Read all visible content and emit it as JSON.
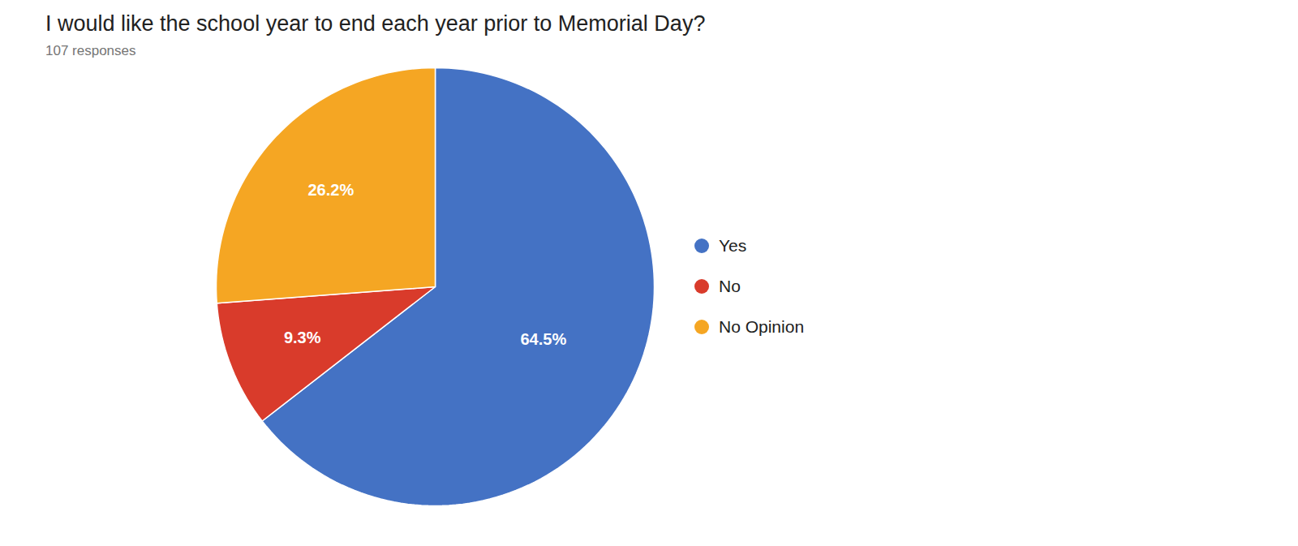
{
  "chart_data": {
    "type": "pie",
    "title": "I would like the school year to end each year prior to Memorial Day?",
    "subtitle": "107 responses",
    "categories": [
      "Yes",
      "No",
      "No Opinion"
    ],
    "values": [
      64.5,
      9.3,
      26.2
    ],
    "value_labels": [
      "64.5%",
      "9.3%",
      "26.2%"
    ],
    "colors": [
      "#4472C4",
      "#D93B2B",
      "#F5A623"
    ],
    "data_labels": true,
    "legend": "right"
  }
}
